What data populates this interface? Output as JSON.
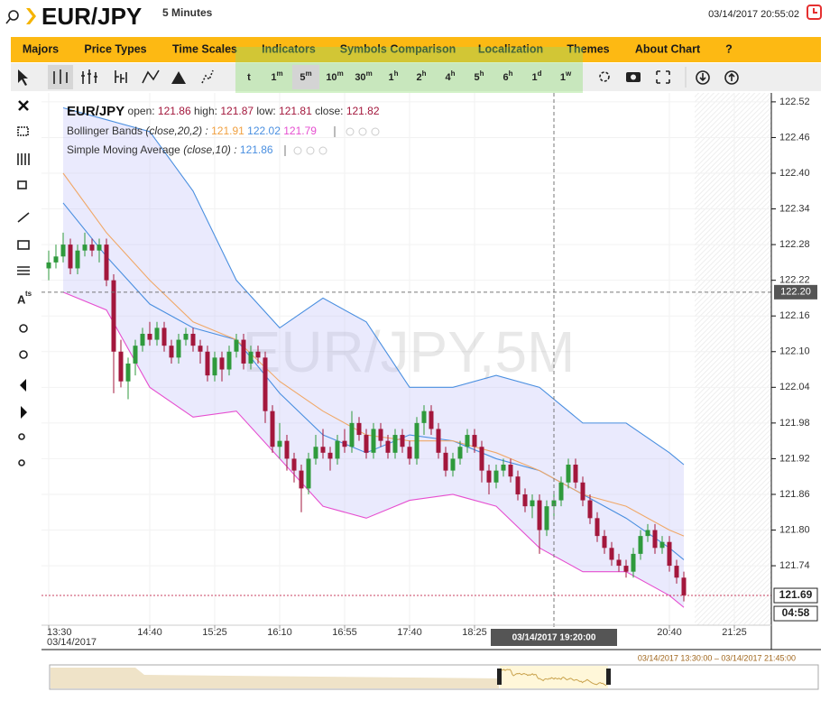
{
  "header": {
    "symbol": "EUR/JPY",
    "interval": "5 Minutes",
    "datetime": "03/14/2017 20:55:02"
  },
  "menu": [
    "Majors",
    "Price Types",
    "Time Scales",
    "Indicators",
    "Symbols Comparison",
    "Localization",
    "Themes",
    "About Chart",
    "?"
  ],
  "timeframes": [
    {
      "num": "t"
    },
    {
      "num": "1",
      "unit": "m"
    },
    {
      "num": "5",
      "unit": "m"
    },
    {
      "num": "10",
      "unit": "m"
    },
    {
      "num": "30",
      "unit": "m"
    },
    {
      "num": "1",
      "unit": "h"
    },
    {
      "num": "2",
      "unit": "h"
    },
    {
      "num": "4",
      "unit": "h"
    },
    {
      "num": "5",
      "unit": "h"
    },
    {
      "num": "6",
      "unit": "h"
    },
    {
      "num": "1",
      "unit": "d"
    },
    {
      "num": "1",
      "unit": "w"
    }
  ],
  "active_timeframe": 2,
  "sidebar_text": {
    "main": "A",
    "sup": "ts"
  },
  "legend": {
    "symbol": "EUR/JPY",
    "open_label": "open:",
    "open": 121.86,
    "high_label": "high:",
    "high": 121.87,
    "low_label": "low:",
    "low": 121.81,
    "close_label": "close:",
    "close": 121.82,
    "bb_name": "Bollinger Bands",
    "bb_params": "(close,20,2) :",
    "bb_values": [
      121.91,
      122.02,
      121.79
    ],
    "sma_name": "Simple Moving Average",
    "sma_params": "(close,10) :",
    "sma_value": 121.86
  },
  "chart_data": {
    "type": "candlestick",
    "watermark": "EUR/JPY,5M",
    "ylim": [
      121.64,
      122.535
    ],
    "yticks": [
      122.52,
      122.46,
      {
        "value": 122.4,
        "label": "122.40"
      },
      122.34,
      122.28,
      122.22,
      122.16,
      {
        "value": 122.1,
        "label": "122.10"
      },
      122.04,
      121.98,
      121.92,
      121.86,
      {
        "value": 121.8,
        "label": "121.80"
      },
      121.74
    ],
    "xlim": [
      "13:30",
      "21:50"
    ],
    "xticks": [
      "13:30",
      "14:40",
      "15:25",
      "16:10",
      "16:55",
      "17:40",
      "18:25",
      "20:40",
      "21:25"
    ],
    "first_date": "03/14/2017",
    "up_color": "#2f9a3c",
    "down_color": "#a3173c",
    "candles": {
      "x": [
        "13:30",
        "13:35",
        "13:40",
        "13:45",
        "13:50",
        "13:55",
        "14:00",
        "14:05",
        "14:10",
        "14:15",
        "14:20",
        "14:25",
        "14:30",
        "14:35",
        "14:40",
        "14:45",
        "14:50",
        "14:55",
        "15:00",
        "15:05",
        "15:10",
        "15:15",
        "15:20",
        "15:25",
        "15:30",
        "15:35",
        "15:40",
        "15:45",
        "15:50",
        "15:55",
        "16:00",
        "16:05",
        "16:10",
        "16:15",
        "16:20",
        "16:25",
        "16:30",
        "16:35",
        "16:40",
        "16:45",
        "16:50",
        "16:55",
        "17:00",
        "17:05",
        "17:10",
        "17:15",
        "17:20",
        "17:25",
        "17:30",
        "17:35",
        "17:40",
        "17:45",
        "17:50",
        "17:55",
        "18:00",
        "18:05",
        "18:10",
        "18:15",
        "18:20",
        "18:25",
        "18:30",
        "18:35",
        "18:40",
        "18:45",
        "18:50",
        "18:55",
        "19:00",
        "19:05",
        "19:10",
        "19:15",
        "19:20",
        "19:25",
        "19:30",
        "19:35",
        "19:40",
        "19:45",
        "19:50",
        "19:55",
        "20:00",
        "20:05",
        "20:10",
        "20:15",
        "20:20",
        "20:25",
        "20:30",
        "20:35",
        "20:40",
        "20:45",
        "20:50"
      ],
      "open": [
        122.24,
        122.25,
        122.26,
        122.28,
        122.24,
        122.27,
        122.28,
        122.27,
        122.28,
        122.22,
        122.1,
        122.05,
        122.08,
        122.11,
        122.13,
        122.12,
        122.14,
        122.11,
        122.09,
        122.12,
        122.13,
        122.11,
        122.1,
        122.06,
        122.09,
        122.07,
        122.1,
        122.12,
        122.08,
        122.1,
        122.09,
        122.0,
        121.94,
        121.95,
        121.92,
        121.9,
        121.87,
        121.92,
        121.94,
        121.93,
        121.92,
        121.95,
        121.94,
        121.98,
        121.96,
        121.93,
        121.97,
        121.95,
        121.93,
        121.96,
        121.94,
        121.92,
        121.98,
        122.0,
        121.97,
        121.93,
        121.9,
        121.92,
        121.94,
        121.96,
        121.94,
        121.9,
        121.88,
        121.9,
        121.91,
        121.89,
        121.86,
        121.84,
        121.85,
        121.8,
        121.84,
        121.85,
        121.88,
        121.91,
        121.88,
        121.85,
        121.82,
        121.79,
        121.77,
        121.75,
        121.74,
        121.73,
        121.76,
        121.79,
        121.8,
        121.77,
        121.78,
        121.74,
        121.72
      ],
      "high": [
        122.27,
        122.28,
        122.3,
        122.29,
        122.28,
        122.3,
        122.29,
        122.29,
        122.29,
        122.23,
        122.12,
        122.09,
        122.12,
        122.14,
        122.15,
        122.15,
        122.15,
        122.12,
        122.13,
        122.14,
        122.14,
        122.12,
        122.11,
        122.1,
        122.1,
        122.11,
        122.13,
        122.13,
        122.11,
        122.11,
        122.1,
        122.01,
        121.98,
        121.96,
        121.93,
        121.91,
        121.93,
        121.96,
        121.97,
        121.94,
        121.96,
        121.97,
        122.0,
        121.99,
        121.97,
        121.98,
        121.98,
        121.96,
        121.97,
        121.97,
        121.95,
        121.99,
        122.01,
        122.01,
        121.98,
        121.94,
        121.93,
        121.95,
        121.97,
        121.97,
        121.95,
        121.91,
        121.91,
        121.92,
        121.92,
        121.9,
        121.87,
        121.86,
        121.86,
        121.85,
        121.86,
        121.89,
        121.92,
        121.92,
        121.89,
        121.86,
        121.83,
        121.8,
        121.78,
        121.76,
        121.75,
        121.77,
        121.8,
        121.81,
        121.81,
        121.79,
        121.79,
        121.75,
        121.73
      ],
      "low": [
        122.22,
        122.24,
        122.25,
        122.23,
        122.23,
        122.26,
        122.26,
        122.25,
        122.21,
        122.03,
        122.04,
        122.02,
        122.06,
        122.1,
        122.11,
        122.11,
        122.1,
        122.08,
        122.08,
        122.11,
        122.1,
        122.08,
        122.05,
        122.05,
        122.05,
        122.06,
        122.09,
        122.07,
        122.07,
        122.08,
        121.98,
        121.93,
        121.92,
        121.9,
        121.88,
        121.83,
        121.86,
        121.91,
        121.92,
        121.9,
        121.91,
        121.93,
        121.93,
        121.95,
        121.92,
        121.92,
        121.94,
        121.92,
        121.92,
        121.93,
        121.91,
        121.91,
        121.96,
        121.96,
        121.92,
        121.89,
        121.89,
        121.91,
        121.93,
        121.93,
        121.88,
        121.86,
        121.87,
        121.89,
        121.88,
        121.85,
        121.83,
        121.82,
        121.76,
        121.79,
        121.82,
        121.84,
        121.87,
        121.87,
        121.84,
        121.81,
        121.78,
        121.76,
        121.74,
        121.73,
        121.72,
        121.72,
        121.75,
        121.78,
        121.76,
        121.76,
        121.73,
        121.71,
        121.68
      ],
      "close": [
        122.25,
        122.26,
        122.28,
        122.24,
        122.27,
        122.28,
        122.27,
        122.28,
        122.22,
        122.1,
        122.05,
        122.08,
        122.11,
        122.13,
        122.12,
        122.14,
        122.11,
        122.09,
        122.12,
        122.13,
        122.11,
        122.1,
        122.06,
        122.09,
        122.07,
        122.1,
        122.12,
        122.08,
        122.1,
        122.09,
        122.0,
        121.94,
        121.95,
        121.92,
        121.9,
        121.87,
        121.92,
        121.94,
        121.93,
        121.92,
        121.95,
        121.94,
        121.98,
        121.96,
        121.93,
        121.97,
        121.95,
        121.93,
        121.96,
        121.94,
        121.92,
        121.98,
        122.0,
        121.97,
        121.93,
        121.9,
        121.92,
        121.94,
        121.96,
        121.94,
        121.9,
        121.88,
        121.9,
        121.91,
        121.89,
        121.86,
        121.84,
        121.85,
        121.8,
        121.84,
        121.85,
        121.88,
        121.91,
        121.88,
        121.85,
        121.82,
        121.79,
        121.77,
        121.75,
        121.74,
        121.73,
        121.76,
        121.79,
        121.8,
        121.77,
        121.78,
        121.74,
        121.72,
        121.69
      ]
    },
    "indicators": {
      "x": [
        "13:40",
        "14:10",
        "14:40",
        "15:10",
        "15:40",
        "16:10",
        "16:40",
        "17:10",
        "17:40",
        "18:10",
        "18:40",
        "19:10",
        "19:40",
        "20:10",
        "20:40",
        "20:50"
      ],
      "series": [
        {
          "color": "#4a8fe0",
          "values": [
            122.51,
            122.49,
            122.47,
            122.37,
            122.22,
            122.14,
            122.19,
            122.15,
            122.04,
            122.04,
            122.06,
            122.04,
            121.98,
            121.98,
            121.93,
            121.91
          ]
        },
        {
          "color": "#4a8fe0",
          "values": [
            122.35,
            122.26,
            122.18,
            122.14,
            122.12,
            122.03,
            121.96,
            121.93,
            121.96,
            121.95,
            121.92,
            121.9,
            121.86,
            121.82,
            121.77,
            121.75
          ]
        },
        {
          "color": "#e64fd0",
          "values": [
            122.2,
            122.17,
            122.04,
            121.99,
            122.0,
            121.92,
            121.84,
            121.82,
            121.85,
            121.86,
            121.84,
            121.77,
            121.73,
            121.73,
            121.69,
            121.67
          ]
        },
        {
          "color": "#f0a868",
          "values": [
            122.4,
            122.3,
            122.22,
            122.15,
            122.12,
            122.05,
            122.0,
            121.96,
            121.95,
            121.95,
            121.93,
            121.9,
            121.86,
            121.84,
            121.8,
            121.79
          ]
        }
      ],
      "band_fill": "rgba(190,190,250,0.32)"
    },
    "current_price": 121.69,
    "countdown": "04:58",
    "crosshair": {
      "price": {
        "value": 122.2,
        "label": "122.20"
      },
      "time": "19:20",
      "time_label": "03/14/2017 19:20:00"
    }
  },
  "navigator": {
    "range": "03/14/2017 13:30:00 – 03/14/2017 21:45:00"
  }
}
